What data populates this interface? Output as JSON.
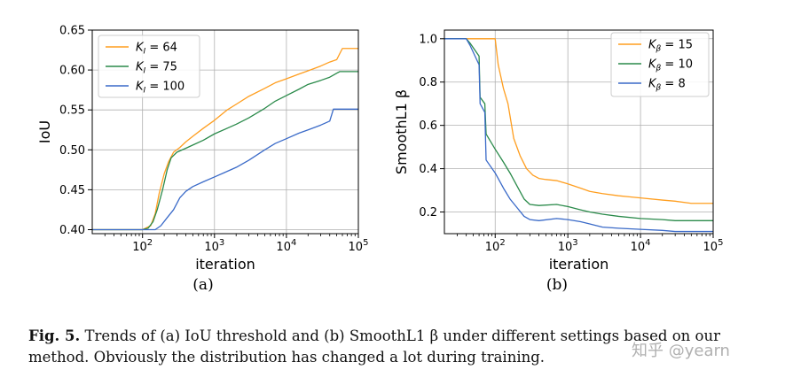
{
  "chart_data": [
    {
      "type": "line",
      "subfigure_label": "(a)",
      "xlabel": "iteration",
      "ylabel": "IoU",
      "xscale": "log",
      "xlim": [
        20,
        100000
      ],
      "ylim": [
        0.395,
        0.65
      ],
      "xticks": [
        {
          "value": 100,
          "base": "10",
          "exp": "2"
        },
        {
          "value": 1000,
          "base": "10",
          "exp": "3"
        },
        {
          "value": 10000,
          "base": "10",
          "exp": "4"
        },
        {
          "value": 100000,
          "base": "10",
          "exp": "5"
        }
      ],
      "yticks": [
        {
          "value": 0.4,
          "label": "0.40"
        },
        {
          "value": 0.45,
          "label": "0.45"
        },
        {
          "value": 0.5,
          "label": "0.50"
        },
        {
          "value": 0.55,
          "label": "0.55"
        },
        {
          "value": 0.6,
          "label": "0.60"
        },
        {
          "value": 0.65,
          "label": "0.65"
        }
      ],
      "grid": true,
      "legend_position": "top-left",
      "series": [
        {
          "name": "K_I = 64",
          "sym": "K",
          "sub": "I",
          "val": "= 64",
          "color": "#ff9e1f",
          "points": [
            [
              20,
              0.4
            ],
            [
              100,
              0.4
            ],
            [
              130,
              0.405
            ],
            [
              150,
              0.42
            ],
            [
              170,
              0.445
            ],
            [
              200,
              0.47
            ],
            [
              230,
              0.485
            ],
            [
              270,
              0.497
            ],
            [
              330,
              0.503
            ],
            [
              400,
              0.51
            ],
            [
              500,
              0.517
            ],
            [
              700,
              0.527
            ],
            [
              1000,
              0.537
            ],
            [
              1500,
              0.55
            ],
            [
              2000,
              0.557
            ],
            [
              3000,
              0.567
            ],
            [
              5000,
              0.577
            ],
            [
              7000,
              0.584
            ],
            [
              10000,
              0.589
            ],
            [
              15000,
              0.595
            ],
            [
              20000,
              0.599
            ],
            [
              30000,
              0.605
            ],
            [
              40000,
              0.61
            ],
            [
              50000,
              0.613
            ],
            [
              60000,
              0.627
            ],
            [
              100000,
              0.627
            ]
          ]
        },
        {
          "name": "K_I = 75",
          "sym": "K",
          "sub": "I",
          "val": "= 75",
          "color": "#2a8a4a",
          "points": [
            [
              20,
              0.4
            ],
            [
              100,
              0.4
            ],
            [
              120,
              0.402
            ],
            [
              140,
              0.41
            ],
            [
              160,
              0.425
            ],
            [
              190,
              0.45
            ],
            [
              220,
              0.475
            ],
            [
              250,
              0.49
            ],
            [
              300,
              0.497
            ],
            [
              400,
              0.502
            ],
            [
              500,
              0.506
            ],
            [
              700,
              0.512
            ],
            [
              1000,
              0.52
            ],
            [
              1500,
              0.527
            ],
            [
              2000,
              0.532
            ],
            [
              3000,
              0.54
            ],
            [
              5000,
              0.552
            ],
            [
              7000,
              0.561
            ],
            [
              10000,
              0.568
            ],
            [
              15000,
              0.576
            ],
            [
              20000,
              0.582
            ],
            [
              30000,
              0.587
            ],
            [
              40000,
              0.591
            ],
            [
              55000,
              0.598
            ],
            [
              100000,
              0.598
            ]
          ]
        },
        {
          "name": "K_I = 100",
          "sym": "K",
          "sub": "I",
          "val": "= 100",
          "color": "#3a6ac8",
          "points": [
            [
              20,
              0.4
            ],
            [
              150,
              0.4
            ],
            [
              180,
              0.405
            ],
            [
              220,
              0.415
            ],
            [
              270,
              0.425
            ],
            [
              330,
              0.44
            ],
            [
              400,
              0.448
            ],
            [
              500,
              0.454
            ],
            [
              700,
              0.46
            ],
            [
              1000,
              0.466
            ],
            [
              1500,
              0.473
            ],
            [
              2000,
              0.478
            ],
            [
              3000,
              0.487
            ],
            [
              5000,
              0.5
            ],
            [
              7000,
              0.508
            ],
            [
              10000,
              0.514
            ],
            [
              15000,
              0.521
            ],
            [
              20000,
              0.525
            ],
            [
              30000,
              0.531
            ],
            [
              40000,
              0.536
            ],
            [
              45000,
              0.551
            ],
            [
              100000,
              0.551
            ]
          ]
        }
      ]
    },
    {
      "type": "line",
      "subfigure_label": "(b)",
      "xlabel": "iteration",
      "ylabel": "SmoothL1 β",
      "xscale": "log",
      "xlim": [
        20,
        100000
      ],
      "ylim": [
        0.1,
        1.04
      ],
      "xticks": [
        {
          "value": 100,
          "base": "10",
          "exp": "2"
        },
        {
          "value": 1000,
          "base": "10",
          "exp": "3"
        },
        {
          "value": 10000,
          "base": "10",
          "exp": "4"
        },
        {
          "value": 100000,
          "base": "10",
          "exp": "5"
        }
      ],
      "yticks": [
        {
          "value": 0.2,
          "label": "0.2"
        },
        {
          "value": 0.4,
          "label": "0.4"
        },
        {
          "value": 0.6,
          "label": "0.6"
        },
        {
          "value": 0.8,
          "label": "0.8"
        },
        {
          "value": 1.0,
          "label": "1.0"
        }
      ],
      "grid": true,
      "legend_position": "top-right",
      "series": [
        {
          "name": "K_β = 15",
          "sym": "K",
          "sub": "β",
          "val": "= 15",
          "color": "#ff9e1f",
          "points": [
            [
              20,
              1.0
            ],
            [
              100,
              1.0
            ],
            [
              110,
              0.88
            ],
            [
              130,
              0.77
            ],
            [
              150,
              0.7
            ],
            [
              180,
              0.54
            ],
            [
              220,
              0.46
            ],
            [
              270,
              0.4
            ],
            [
              330,
              0.37
            ],
            [
              400,
              0.355
            ],
            [
              500,
              0.35
            ],
            [
              700,
              0.345
            ],
            [
              1000,
              0.33
            ],
            [
              1500,
              0.31
            ],
            [
              2000,
              0.295
            ],
            [
              3000,
              0.285
            ],
            [
              5000,
              0.275
            ],
            [
              7000,
              0.27
            ],
            [
              10000,
              0.265
            ],
            [
              20000,
              0.255
            ],
            [
              30000,
              0.25
            ],
            [
              50000,
              0.24
            ],
            [
              100000,
              0.24
            ]
          ]
        },
        {
          "name": "K_β = 10",
          "sym": "K",
          "sub": "β",
          "val": "= 10",
          "color": "#2a8a4a",
          "points": [
            [
              20,
              1.0
            ],
            [
              40,
              1.0
            ],
            [
              45,
              0.98
            ],
            [
              60,
              0.92
            ],
            [
              62,
              0.73
            ],
            [
              72,
              0.7
            ],
            [
              75,
              0.56
            ],
            [
              100,
              0.49
            ],
            [
              130,
              0.43
            ],
            [
              160,
              0.38
            ],
            [
              200,
              0.32
            ],
            [
              250,
              0.26
            ],
            [
              300,
              0.235
            ],
            [
              400,
              0.23
            ],
            [
              700,
              0.235
            ],
            [
              1000,
              0.225
            ],
            [
              1500,
              0.21
            ],
            [
              2000,
              0.2
            ],
            [
              3000,
              0.19
            ],
            [
              5000,
              0.18
            ],
            [
              10000,
              0.17
            ],
            [
              20000,
              0.165
            ],
            [
              30000,
              0.16
            ],
            [
              100000,
              0.16
            ]
          ]
        },
        {
          "name": "K_β = 8",
          "sym": "K",
          "sub": "β",
          "val": "= 8",
          "color": "#3a6ac8",
          "points": [
            [
              20,
              1.0
            ],
            [
              40,
              1.0
            ],
            [
              45,
              0.97
            ],
            [
              60,
              0.88
            ],
            [
              62,
              0.7
            ],
            [
              72,
              0.66
            ],
            [
              75,
              0.44
            ],
            [
              100,
              0.38
            ],
            [
              130,
              0.31
            ],
            [
              160,
              0.26
            ],
            [
              200,
              0.22
            ],
            [
              250,
              0.18
            ],
            [
              300,
              0.165
            ],
            [
              400,
              0.16
            ],
            [
              700,
              0.17
            ],
            [
              1000,
              0.165
            ],
            [
              1500,
              0.155
            ],
            [
              2000,
              0.145
            ],
            [
              3000,
              0.13
            ],
            [
              5000,
              0.125
            ],
            [
              10000,
              0.12
            ],
            [
              20000,
              0.115
            ],
            [
              30000,
              0.11
            ],
            [
              100000,
              0.11
            ]
          ]
        }
      ]
    }
  ],
  "caption": {
    "label": "Fig. 5.",
    "text": " Trends of (a) IoU threshold and (b) SmoothL1 β under different settings based on our method. Obviously the distribution has changed a lot during training."
  },
  "watermark": "知乎 @yearn"
}
